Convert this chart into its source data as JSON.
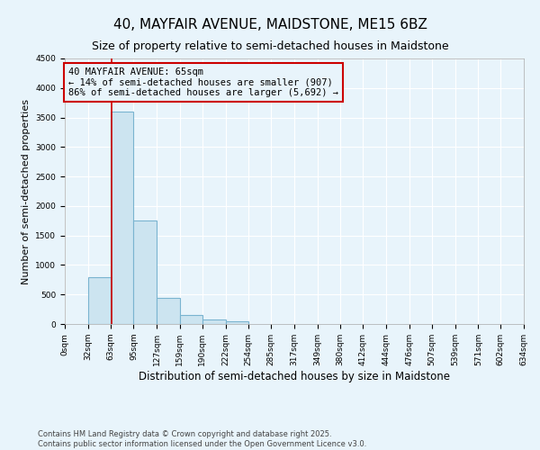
{
  "title": "40, MAYFAIR AVENUE, MAIDSTONE, ME15 6BZ",
  "subtitle": "Size of property relative to semi-detached houses in Maidstone",
  "xlabel": "Distribution of semi-detached houses by size in Maidstone",
  "ylabel": "Number of semi-detached properties",
  "bin_edges": [
    0,
    32,
    63,
    95,
    127,
    159,
    190,
    222,
    254,
    285,
    317,
    349,
    380,
    412,
    444,
    476,
    507,
    539,
    571,
    602,
    634
  ],
  "bar_heights": [
    0,
    800,
    3600,
    1750,
    450,
    150,
    75,
    50,
    0,
    0,
    0,
    0,
    0,
    0,
    0,
    0,
    0,
    0,
    0,
    0
  ],
  "bar_color": "#cce4f0",
  "bar_edgecolor": "#7ab4d0",
  "property_size": 65,
  "property_line_color": "#cc0000",
  "annotation_text": "40 MAYFAIR AVENUE: 65sqm\n← 14% of semi-detached houses are smaller (907)\n86% of semi-detached houses are larger (5,692) →",
  "annotation_box_color": "#cc0000",
  "ylim": [
    0,
    4500
  ],
  "yticks": [
    0,
    500,
    1000,
    1500,
    2000,
    2500,
    3000,
    3500,
    4000,
    4500
  ],
  "background_color": "#e8f4fb",
  "grid_color": "#ffffff",
  "footer_line1": "Contains HM Land Registry data © Crown copyright and database right 2025.",
  "footer_line2": "Contains public sector information licensed under the Open Government Licence v3.0.",
  "title_fontsize": 11,
  "subtitle_fontsize": 9,
  "xlabel_fontsize": 8.5,
  "ylabel_fontsize": 8,
  "tick_fontsize": 6.5,
  "annotation_fontsize": 7.5,
  "footer_fontsize": 6
}
